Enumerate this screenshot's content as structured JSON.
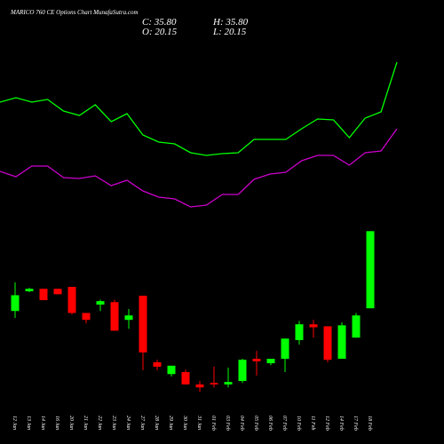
{
  "chart_data": {
    "type": "candlestick",
    "title": "MARICO 760  CE Options  Chart MunafaSutra.com",
    "ohlc_text": {
      "close": "C: 35.80",
      "high": "H: 35.80",
      "open": "O: 20.15",
      "low": "L: 20.15"
    },
    "categories": [
      "12 Jan",
      "13 Jan",
      "14 Jan",
      "16 Jan",
      "20 Jan",
      "21 Jan",
      "22 Jan",
      "23 Jan",
      "24 Jan",
      "27 Jan",
      "28 Jan",
      "29 Jan",
      "30 Jan",
      "31 Jan",
      "01 Feb",
      "03 Feb",
      "04 Feb",
      "05 Feb",
      "06 Feb",
      "07 Feb",
      "10 Feb",
      "11 Feb",
      "12 Feb",
      "14 Feb",
      "17 Feb",
      "18 Feb"
    ],
    "open": [
      19.6,
      23.6,
      24.1,
      24.1,
      24.5,
      19.2,
      20.9,
      21.4,
      17.8,
      22.7,
      9.2,
      6.8,
      7.2,
      4.7,
      5.0,
      4.7,
      5.4,
      9.9,
      9.0,
      9.9,
      13.7,
      16.9,
      16.5,
      9.9,
      14.2,
      20.15
    ],
    "high": [
      25.4,
      24.3,
      24.1,
      24.1,
      24.5,
      19.2,
      21.9,
      21.9,
      20.0,
      22.7,
      9.7,
      8.5,
      7.7,
      5.4,
      8.3,
      8.1,
      9.9,
      11.5,
      9.9,
      14.0,
      17.6,
      17.8,
      16.5,
      17.3,
      19.2,
      35.8
    ],
    "low": [
      18.2,
      23.4,
      21.8,
      23.0,
      18.9,
      17.1,
      19.6,
      15.6,
      16.0,
      7.6,
      7.6,
      6.3,
      4.7,
      3.2,
      4.1,
      4.1,
      5.0,
      6.5,
      8.6,
      7.2,
      12.8,
      14.2,
      9.2,
      9.9,
      14.2,
      20.15
    ],
    "close": [
      22.8,
      24.1,
      21.8,
      23.0,
      19.2,
      17.8,
      21.6,
      15.6,
      18.7,
      11.2,
      8.3,
      8.5,
      4.7,
      4.1,
      4.7,
      5.2,
      9.7,
      9.4,
      9.9,
      14.0,
      16.9,
      16.3,
      9.7,
      16.7,
      18.7,
      35.8
    ],
    "up_color": "#00ff00",
    "down_color": "#ff0000",
    "ylim": [
      0,
      40
    ],
    "lines": [
      {
        "color": "#00ff00",
        "values": [
          67.5,
          70,
          67.5,
          69,
          62.5,
          60,
          66,
          56.5,
          61,
          49,
          45,
          44,
          39,
          37.5,
          38.5,
          39,
          46.5,
          46.5,
          46.5,
          52.5,
          58,
          57.5,
          47.5,
          58.5,
          62,
          90
        ]
      },
      {
        "color": "#cc00cc",
        "values": [
          28.5,
          25.5,
          31.5,
          31.5,
          25,
          24.5,
          26,
          20.5,
          23.5,
          17.5,
          14,
          13,
          8.5,
          9.5,
          15.5,
          15.5,
          24,
          27,
          28,
          34.5,
          37.5,
          37.5,
          32,
          39,
          40,
          52.5
        ]
      }
    ],
    "y2lim": [
      0,
      100
    ]
  }
}
